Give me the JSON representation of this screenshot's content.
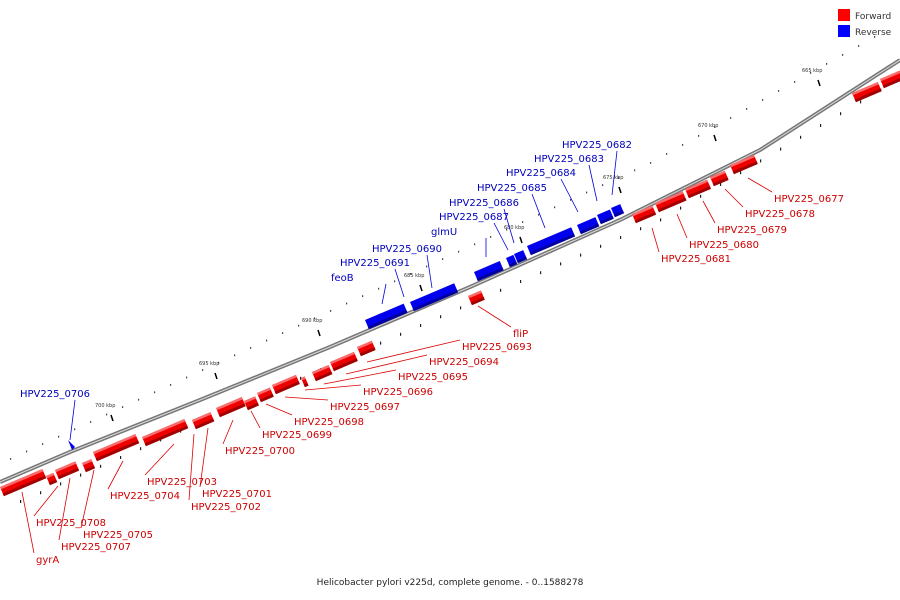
{
  "caption": "Helicobacter pylori v225d, complete genome. - 0..1588278",
  "legend": [
    {
      "label": "Forward",
      "color": "#ff0000"
    },
    {
      "label": "Reverse",
      "color": "#0000ff"
    }
  ],
  "ticks": [
    "665 kbp",
    "670 kbp",
    "675 kbp",
    "680 kbp",
    "685 kbp",
    "690 kbp",
    "695 kbp",
    "700 kbp"
  ],
  "forward_labels": [
    "HPV225_0677",
    "HPV225_0678",
    "HPV225_0679",
    "HPV225_0680",
    "HPV225_0681",
    "fliP",
    "HPV225_0693",
    "HPV225_0694",
    "HPV225_0695",
    "HPV225_0696",
    "HPV225_0697",
    "HPV225_0698",
    "HPV225_0699",
    "HPV225_0700",
    "HPV225_0701",
    "HPV225_0702",
    "HPV225_0703",
    "HPV225_0704",
    "HPV225_0705",
    "HPV225_0707",
    "HPV225_0708",
    "gyrA"
  ],
  "reverse_labels": [
    "HPV225_0682",
    "HPV225_0683",
    "HPV225_0684",
    "HPV225_0685",
    "HPV225_0686",
    "HPV225_0687",
    "glmU",
    "HPV225_0690",
    "HPV225_0691",
    "feoB",
    "HPV225_0706"
  ]
}
